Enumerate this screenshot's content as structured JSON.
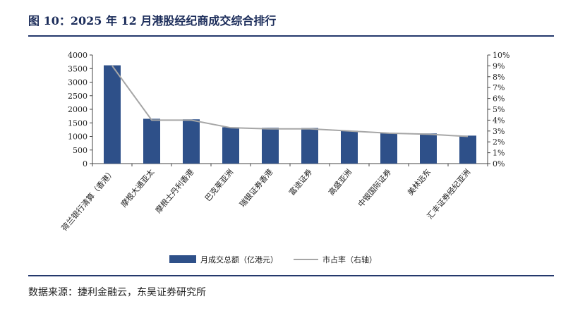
{
  "title": "图 10：2025 年 12 月港股经纪商成交综合排行",
  "source": "数据来源：捷利金融云，东吴证券研究所",
  "colors": {
    "bar": "#2e5089",
    "line": "#a6a6a6",
    "rule": "#24386c",
    "title": "#1b2c5a"
  },
  "chart_data": {
    "type": "bar",
    "categories": [
      "荷兰银行清算（香港）",
      "摩根大通亚太",
      "摩根士丹利香港",
      "巴克莱亚洲",
      "瑞银证券香港",
      "富途证券",
      "高盛亚洲",
      "中银国际证券",
      "美林远东",
      "汇丰证券经纪亚洲"
    ],
    "series": [
      {
        "name": "月成交总额（亿港元）",
        "type": "bar",
        "axis": "left",
        "values": [
          3620,
          1650,
          1630,
          1340,
          1320,
          1310,
          1210,
          1120,
          1110,
          1030
        ]
      },
      {
        "name": "市占率（右轴）",
        "type": "line",
        "axis": "right",
        "values": [
          9.0,
          4.0,
          4.0,
          3.3,
          3.2,
          3.2,
          3.0,
          2.8,
          2.7,
          2.5
        ]
      }
    ],
    "ylim_left": [
      0,
      4000
    ],
    "yticks_left": [
      "0",
      "500",
      "1000",
      "1500",
      "2000",
      "2500",
      "3000",
      "3500",
      "4000"
    ],
    "ylim_right": [
      0,
      10
    ],
    "yticks_right": [
      "0%",
      "1%",
      "2%",
      "3%",
      "4%",
      "5%",
      "6%",
      "7%",
      "8%",
      "9%",
      "10%"
    ],
    "grid": false,
    "legend_position": "bottom"
  }
}
